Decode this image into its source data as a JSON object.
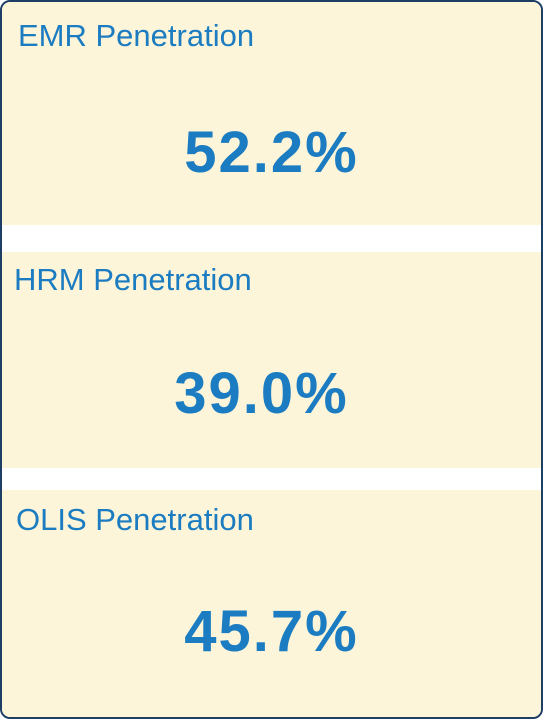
{
  "cards": [
    {
      "label": "EMR Penetration",
      "value": "52.2%"
    },
    {
      "label": "HRM Penetration",
      "value": "39.0%"
    },
    {
      "label": "OLIS Penetration",
      "value": "45.7%"
    }
  ]
}
